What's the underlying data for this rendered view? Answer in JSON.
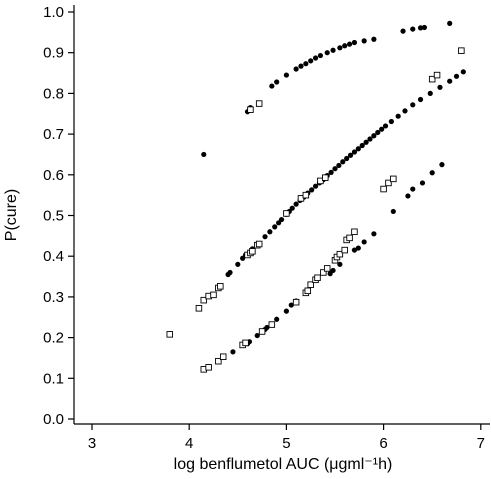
{
  "chart_data": {
    "type": "scatter",
    "xlabel": "log benflumetol AUC (μgml⁻¹h)",
    "ylabel": "P(cure)",
    "xlim": [
      2.8,
      7.1
    ],
    "ylim": [
      0.0,
      1.0
    ],
    "x_ticks": [
      "3",
      "4",
      "5",
      "6",
      "7"
    ],
    "x_tick_values": [
      3,
      4,
      5,
      6,
      7
    ],
    "y_ticks": [
      "0.0",
      "0.1",
      "0.2",
      "0.3",
      "0.4",
      "0.5",
      "0.6",
      "0.7",
      "0.8",
      "0.9",
      "1.0"
    ],
    "y_tick_values": [
      0.0,
      0.1,
      0.2,
      0.3,
      0.4,
      0.5,
      0.6,
      0.7,
      0.8,
      0.9,
      1.0
    ],
    "grid": false,
    "series": [
      {
        "marker": "filled-circle",
        "color": "#000000",
        "points": [
          [
            4.15,
            0.65
          ],
          [
            4.6,
            0.755
          ],
          [
            4.63,
            0.765
          ],
          [
            4.85,
            0.818
          ],
          [
            4.9,
            0.828
          ],
          [
            5.0,
            0.845
          ],
          [
            5.1,
            0.86
          ],
          [
            5.15,
            0.867
          ],
          [
            5.2,
            0.873
          ],
          [
            5.25,
            0.88
          ],
          [
            5.3,
            0.887
          ],
          [
            5.35,
            0.893
          ],
          [
            5.42,
            0.9
          ],
          [
            5.48,
            0.906
          ],
          [
            5.55,
            0.912
          ],
          [
            5.6,
            0.917
          ],
          [
            5.65,
            0.921
          ],
          [
            5.7,
            0.925
          ],
          [
            5.8,
            0.929
          ],
          [
            5.9,
            0.933
          ],
          [
            6.2,
            0.953
          ],
          [
            6.3,
            0.958
          ],
          [
            6.38,
            0.961
          ],
          [
            6.42,
            0.962
          ],
          [
            6.68,
            0.972
          ],
          [
            4.4,
            0.355
          ],
          [
            4.42,
            0.36
          ],
          [
            4.5,
            0.38
          ],
          [
            4.55,
            0.395
          ],
          [
            4.58,
            0.403
          ],
          [
            4.65,
            0.418
          ],
          [
            4.7,
            0.43
          ],
          [
            4.78,
            0.448
          ],
          [
            4.83,
            0.46
          ],
          [
            4.88,
            0.472
          ],
          [
            4.92,
            0.482
          ],
          [
            4.95,
            0.49
          ],
          [
            5.0,
            0.503
          ],
          [
            5.03,
            0.51
          ],
          [
            5.06,
            0.518
          ],
          [
            5.1,
            0.528
          ],
          [
            5.14,
            0.537
          ],
          [
            5.18,
            0.545
          ],
          [
            5.22,
            0.555
          ],
          [
            5.26,
            0.563
          ],
          [
            5.3,
            0.572
          ],
          [
            5.34,
            0.58
          ],
          [
            5.38,
            0.588
          ],
          [
            5.42,
            0.598
          ],
          [
            5.46,
            0.606
          ],
          [
            5.5,
            0.615
          ],
          [
            5.54,
            0.623
          ],
          [
            5.58,
            0.632
          ],
          [
            5.62,
            0.64
          ],
          [
            5.66,
            0.648
          ],
          [
            5.7,
            0.656
          ],
          [
            5.74,
            0.664
          ],
          [
            5.78,
            0.672
          ],
          [
            5.82,
            0.68
          ],
          [
            5.86,
            0.688
          ],
          [
            5.9,
            0.696
          ],
          [
            5.94,
            0.704
          ],
          [
            5.98,
            0.712
          ],
          [
            6.02,
            0.72
          ],
          [
            6.08,
            0.731
          ],
          [
            6.15,
            0.744
          ],
          [
            6.22,
            0.757
          ],
          [
            6.3,
            0.772
          ],
          [
            6.38,
            0.785
          ],
          [
            6.48,
            0.8
          ],
          [
            6.58,
            0.815
          ],
          [
            6.68,
            0.83
          ],
          [
            6.75,
            0.842
          ],
          [
            6.82,
            0.853
          ],
          [
            4.45,
            0.165
          ],
          [
            4.6,
            0.185
          ],
          [
            4.62,
            0.19
          ],
          [
            4.7,
            0.205
          ],
          [
            4.78,
            0.22
          ],
          [
            4.8,
            0.225
          ],
          [
            4.9,
            0.245
          ],
          [
            5.0,
            0.265
          ],
          [
            5.05,
            0.28
          ],
          [
            5.1,
            0.29
          ],
          [
            5.45,
            0.357
          ],
          [
            5.48,
            0.365
          ],
          [
            5.55,
            0.38
          ],
          [
            5.7,
            0.415
          ],
          [
            5.74,
            0.42
          ],
          [
            5.8,
            0.435
          ],
          [
            5.9,
            0.455
          ],
          [
            6.1,
            0.51
          ],
          [
            6.25,
            0.548
          ],
          [
            6.3,
            0.565
          ],
          [
            6.4,
            0.58
          ],
          [
            6.5,
            0.605
          ],
          [
            6.6,
            0.625
          ]
        ]
      },
      {
        "marker": "open-square",
        "color": "#000000",
        "points": [
          [
            4.63,
            0.76
          ],
          [
            4.72,
            0.775
          ],
          [
            6.5,
            0.835
          ],
          [
            6.55,
            0.845
          ],
          [
            6.8,
            0.905
          ],
          [
            3.8,
            0.208
          ],
          [
            4.1,
            0.272
          ],
          [
            4.15,
            0.292
          ],
          [
            4.2,
            0.302
          ],
          [
            4.25,
            0.305
          ],
          [
            4.3,
            0.322
          ],
          [
            4.32,
            0.326
          ],
          [
            4.6,
            0.403
          ],
          [
            4.63,
            0.408
          ],
          [
            4.65,
            0.412
          ],
          [
            4.7,
            0.427
          ],
          [
            4.72,
            0.43
          ],
          [
            5.0,
            0.505
          ],
          [
            5.15,
            0.542
          ],
          [
            5.2,
            0.55
          ],
          [
            5.35,
            0.585
          ],
          [
            5.4,
            0.593
          ],
          [
            4.15,
            0.122
          ],
          [
            4.2,
            0.127
          ],
          [
            4.3,
            0.142
          ],
          [
            4.35,
            0.153
          ],
          [
            4.55,
            0.182
          ],
          [
            4.58,
            0.187
          ],
          [
            4.75,
            0.215
          ],
          [
            4.85,
            0.232
          ],
          [
            5.1,
            0.287
          ],
          [
            5.2,
            0.31
          ],
          [
            5.22,
            0.315
          ],
          [
            5.25,
            0.33
          ],
          [
            5.3,
            0.342
          ],
          [
            5.32,
            0.347
          ],
          [
            5.38,
            0.36
          ],
          [
            5.42,
            0.37
          ],
          [
            5.5,
            0.39
          ],
          [
            5.52,
            0.398
          ],
          [
            5.55,
            0.405
          ],
          [
            5.6,
            0.415
          ],
          [
            5.62,
            0.44
          ],
          [
            5.65,
            0.445
          ],
          [
            5.7,
            0.46
          ],
          [
            6.0,
            0.565
          ],
          [
            6.05,
            0.58
          ],
          [
            6.1,
            0.59
          ]
        ]
      }
    ]
  }
}
